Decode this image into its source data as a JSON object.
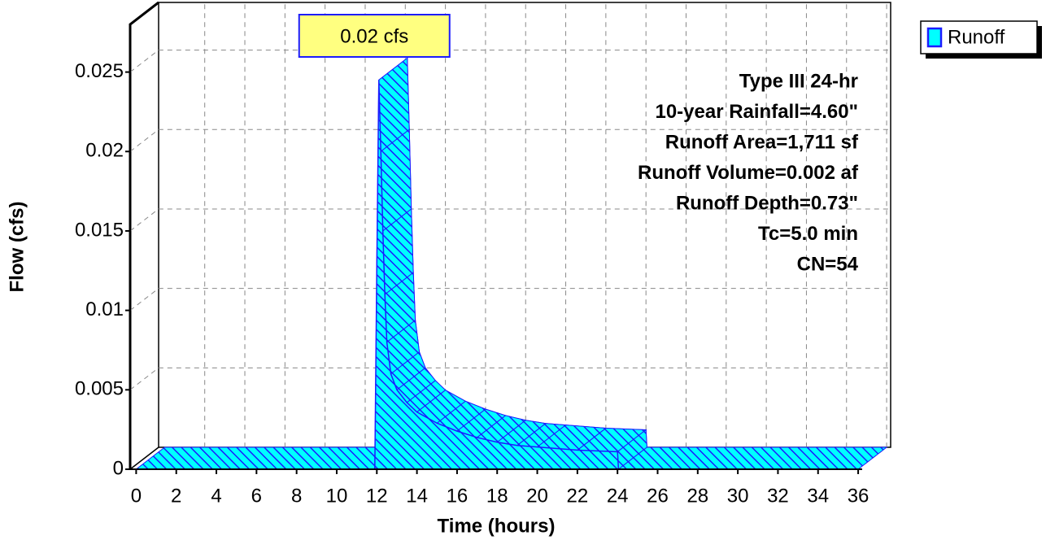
{
  "chart_data": {
    "type": "area",
    "annotations": [
      "Type III 24-hr",
      "10-year Rainfall=4.60\"",
      "Runoff Area=1,711 sf",
      "Runoff Volume=0.002 af",
      "Runoff Depth=0.73\"",
      "Tc=5.0 min",
      "CN=54"
    ],
    "xlabel": "Time  (hours)",
    "ylabel": "Flow  (cfs)",
    "x": [
      0,
      11.9,
      12.0,
      12.1,
      12.2,
      12.3,
      12.4,
      12.5,
      12.7,
      13.0,
      13.5,
      14,
      15,
      16,
      17,
      18,
      19,
      20,
      22,
      24,
      24.05,
      36
    ],
    "series": [
      {
        "name": "Runoff",
        "color": "#00ffff",
        "values": [
          0,
          0,
          0.0129,
          0.0245,
          0.02,
          0.015,
          0.011,
          0.008,
          0.006,
          0.005,
          0.0042,
          0.0036,
          0.0029,
          0.0024,
          0.002,
          0.0017,
          0.0015,
          0.0014,
          0.0012,
          0.0011,
          0,
          0
        ],
        "value_labels": [
          null,
          null,
          null,
          "0.02 cfs",
          null,
          null,
          null,
          null,
          null,
          null,
          null,
          null,
          null,
          null,
          null,
          null,
          null,
          null,
          null,
          null,
          null,
          null
        ]
      }
    ],
    "xlim": [
      -0.3,
      36.2
    ],
    "ylim": [
      0,
      0.028
    ],
    "xticks": [
      0,
      2,
      4,
      6,
      8,
      10,
      12,
      14,
      16,
      18,
      20,
      22,
      24,
      26,
      28,
      30,
      32,
      34,
      36
    ],
    "yticks": [
      0,
      0.005,
      0.01,
      0.015,
      0.02,
      0.025
    ],
    "grid": true,
    "legend": "upper right"
  }
}
